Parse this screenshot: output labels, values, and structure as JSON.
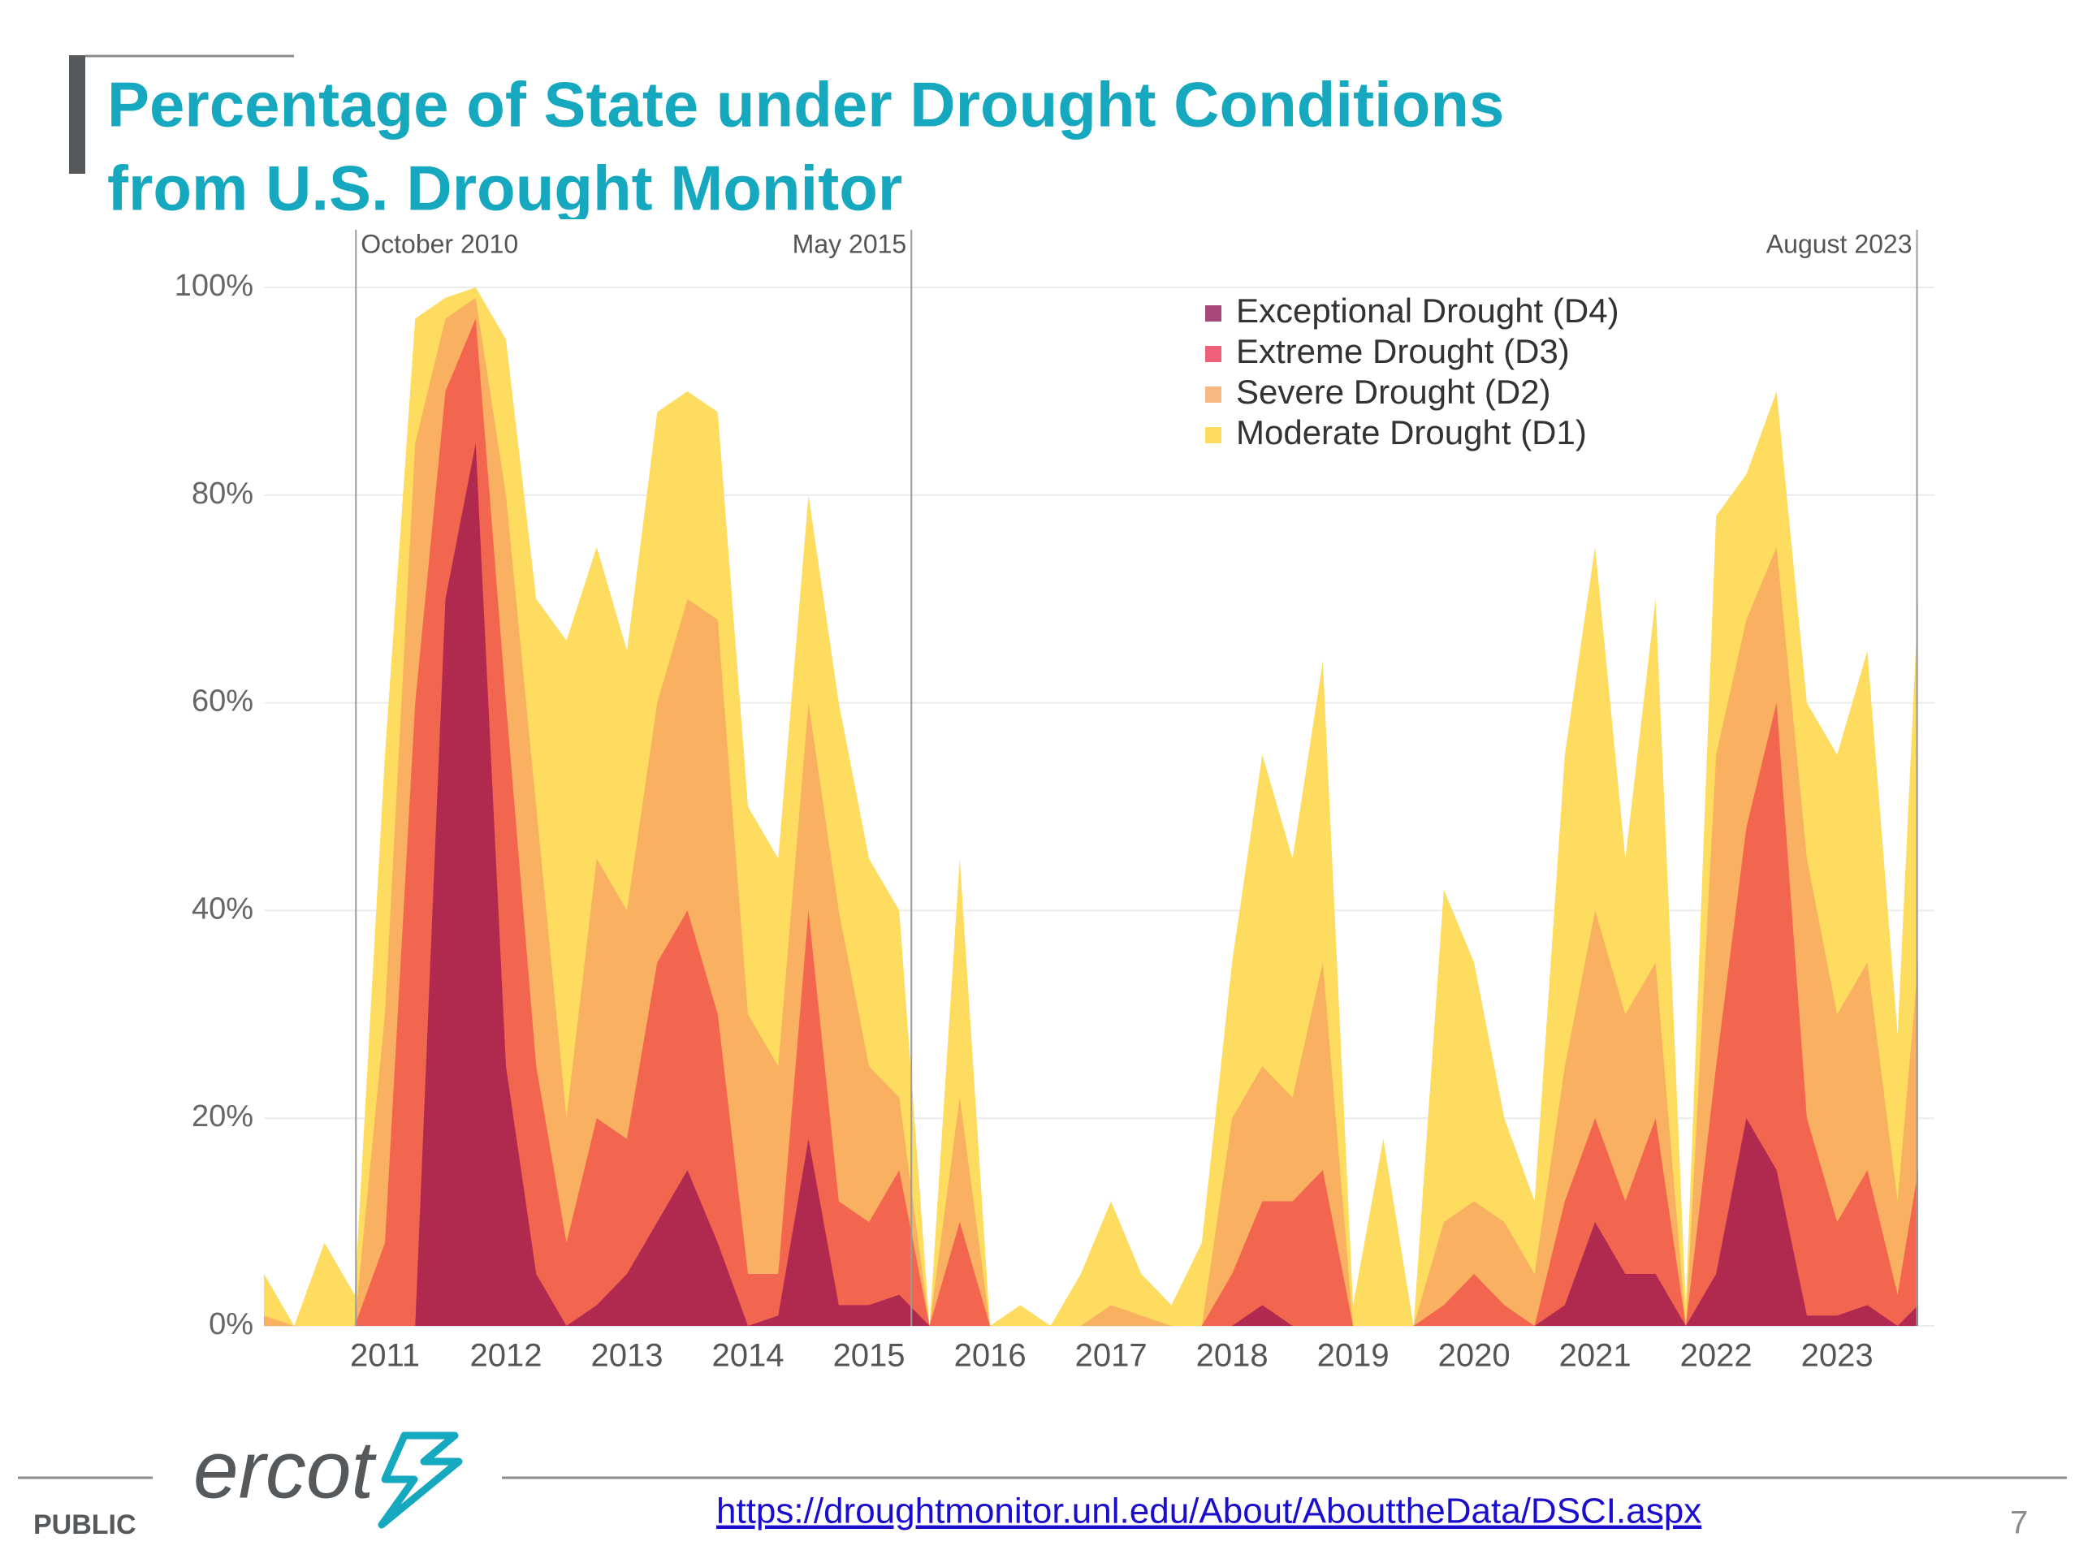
{
  "chart_data": {
    "type": "area",
    "title": "Percentage of State under Drought Conditions",
    "subtitle": "from U.S. Drought Monitor",
    "x": [
      2010.0,
      2010.25,
      2010.5,
      2010.75,
      2011.0,
      2011.25,
      2011.5,
      2011.75,
      2012.0,
      2012.25,
      2012.5,
      2012.75,
      2013.0,
      2013.25,
      2013.5,
      2013.75,
      2014.0,
      2014.25,
      2014.5,
      2014.75,
      2015.0,
      2015.25,
      2015.5,
      2015.75,
      2016.0,
      2016.25,
      2016.5,
      2016.75,
      2017.0,
      2017.25,
      2017.5,
      2017.75,
      2018.0,
      2018.25,
      2018.5,
      2018.75,
      2019.0,
      2019.25,
      2019.5,
      2019.75,
      2020.0,
      2020.25,
      2020.5,
      2020.75,
      2021.0,
      2021.25,
      2021.5,
      2021.75,
      2022.0,
      2022.25,
      2022.5,
      2022.75,
      2023.0,
      2023.25,
      2023.5,
      2023.67
    ],
    "series": [
      {
        "name": "Moderate Drought (D1)",
        "color": "#fddc60",
        "values": [
          5,
          0,
          8,
          3,
          55,
          97,
          99,
          100,
          95,
          70,
          66,
          75,
          65,
          88,
          90,
          88,
          50,
          45,
          80,
          60,
          45,
          40,
          0,
          45,
          0,
          2,
          0,
          5,
          12,
          5,
          2,
          8,
          35,
          55,
          45,
          64,
          2,
          18,
          0,
          42,
          35,
          20,
          12,
          55,
          75,
          45,
          70,
          2,
          78,
          82,
          90,
          60,
          55,
          65,
          28,
          70
        ]
      },
      {
        "name": "Severe Drought (D2)",
        "color": "#f9b060",
        "values": [
          1,
          0,
          0,
          0,
          30,
          85,
          97,
          99,
          80,
          50,
          20,
          45,
          40,
          60,
          70,
          68,
          30,
          25,
          60,
          40,
          25,
          22,
          0,
          22,
          0,
          0,
          0,
          0,
          2,
          1,
          0,
          0,
          20,
          25,
          22,
          35,
          0,
          0,
          0,
          10,
          12,
          10,
          5,
          25,
          40,
          30,
          35,
          0,
          55,
          68,
          75,
          45,
          30,
          35,
          12,
          35
        ]
      },
      {
        "name": "Extreme Drought (D3)",
        "color": "#f2654f",
        "values": [
          0,
          0,
          0,
          0,
          8,
          60,
          90,
          97,
          60,
          25,
          8,
          20,
          18,
          35,
          40,
          30,
          5,
          5,
          40,
          12,
          10,
          15,
          0,
          10,
          0,
          0,
          0,
          0,
          0,
          0,
          0,
          0,
          5,
          12,
          12,
          15,
          0,
          0,
          0,
          2,
          5,
          2,
          0,
          12,
          20,
          12,
          20,
          0,
          25,
          48,
          60,
          20,
          10,
          15,
          3,
          15
        ]
      },
      {
        "name": "Exceptional Drought (D4)",
        "color": "#b02a50",
        "values": [
          0,
          0,
          0,
          0,
          0,
          0,
          70,
          85,
          25,
          5,
          0,
          2,
          5,
          10,
          15,
          8,
          0,
          1,
          18,
          2,
          2,
          3,
          0,
          0,
          0,
          0,
          0,
          0,
          0,
          0,
          0,
          0,
          0,
          2,
          0,
          0,
          0,
          0,
          0,
          0,
          0,
          0,
          0,
          2,
          10,
          5,
          5,
          0,
          5,
          20,
          15,
          1,
          1,
          2,
          0,
          2
        ]
      }
    ],
    "legend_order": [
      3,
      2,
      1,
      0
    ],
    "legend_colors": [
      "#fddc60",
      "#f9b882",
      "#f0607a",
      "#a8477a"
    ],
    "legend": "top-right",
    "xlim": [
      2010.0,
      2023.67
    ],
    "xticks": [
      2011,
      2012,
      2013,
      2014,
      2015,
      2016,
      2017,
      2018,
      2019,
      2020,
      2021,
      2022,
      2023
    ],
    "ylim": [
      0,
      100
    ],
    "yticks": [
      {
        "value": 0,
        "label": "0%"
      },
      {
        "value": 20,
        "label": "20%"
      },
      {
        "value": 40,
        "label": "40%"
      },
      {
        "value": 60,
        "label": "60%"
      },
      {
        "value": 80,
        "label": "80%"
      },
      {
        "value": 100,
        "label": "100%"
      }
    ],
    "grid": true,
    "markers": [
      {
        "x": 2010.76,
        "label": "October 2010"
      },
      {
        "x": 2015.35,
        "label": "May 2015"
      },
      {
        "x": 2023.66,
        "label": "August 2023"
      }
    ]
  },
  "footer": {
    "classification": "PUBLIC",
    "logo": "ercot",
    "link": "https://droughtmonitor.unl.edu/About/AbouttheData/DSCI.aspx",
    "page_number": 7
  }
}
